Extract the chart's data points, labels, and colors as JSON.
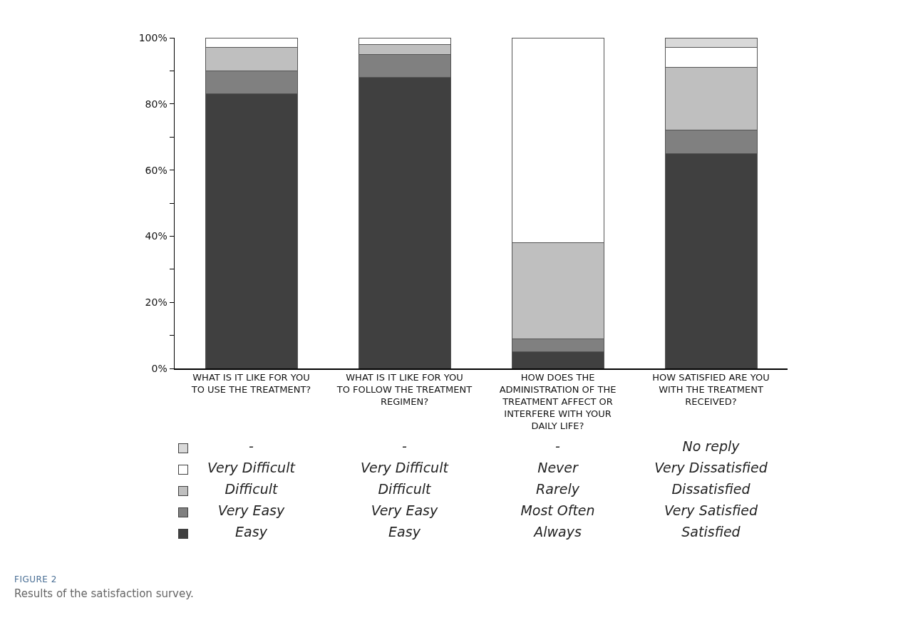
{
  "chart_data": {
    "type": "bar",
    "stacked": true,
    "title": "FIGURE 2",
    "subtitle": "Results of the satisfaction survey.",
    "categories": [
      "WHAT IS IT LIKE FOR YOU TO USE THE TREATMENT?",
      "WHAT IS IT LIKE FOR YOU TO FOLLOW THE TREATMENT REGIMEN?",
      "HOW DOES THE ADMINISTRATION OF THE TREATMENT AFFECT OR INTERFERE WITH YOUR DAILY LIFE?",
      "HOW SATISFIED ARE YOU WITH THE TREATMENT RECEIVED?"
    ],
    "series": [
      {
        "color": "#404040",
        "values": [
          83,
          88,
          5,
          65
        ]
      },
      {
        "color": "#808080",
        "values": [
          7,
          7,
          4,
          7
        ]
      },
      {
        "color": "#bfbfbf",
        "values": [
          7,
          3,
          29,
          19
        ]
      },
      {
        "color": "#ffffff",
        "values": [
          3,
          2,
          62,
          6
        ]
      },
      {
        "color": "#d9d9d9",
        "values": [
          null,
          null,
          null,
          3
        ]
      }
    ],
    "ylim": [
      0,
      100
    ],
    "yticks": [
      {
        "value": 0,
        "label": "0%"
      },
      {
        "value": 10,
        "label": null
      },
      {
        "value": 20,
        "label": "20%"
      },
      {
        "value": 30,
        "label": null
      },
      {
        "value": 40,
        "label": "40%"
      },
      {
        "value": 50,
        "label": null
      },
      {
        "value": 60,
        "label": "60%"
      },
      {
        "value": 70,
        "label": null
      },
      {
        "value": 80,
        "label": "80%"
      },
      {
        "value": 90,
        "label": null
      },
      {
        "value": 100,
        "label": "100%"
      }
    ],
    "grid": false,
    "annotations": [
      "-",
      "-",
      "-",
      "No reply",
      "Very Difficult",
      "Very Difficult",
      "Never",
      "Very Dissatisfied",
      "Difficult",
      "Difficult",
      "Rarely",
      "Dissatisfied",
      "Very Easy",
      "Very Easy",
      "Most Often",
      "Very Satisfied",
      "Easy",
      "Easy",
      "Always",
      "Satisfied"
    ]
  }
}
